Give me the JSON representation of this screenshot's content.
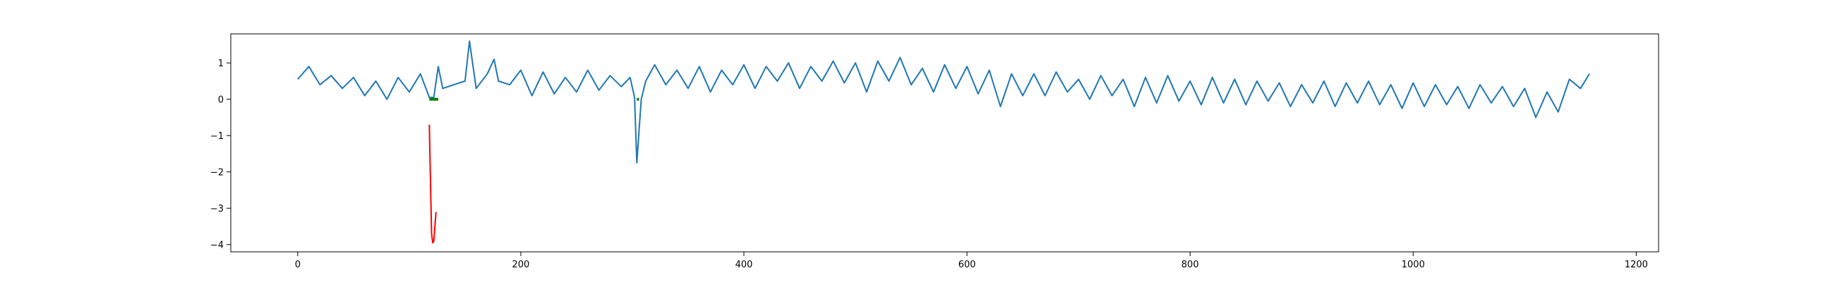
{
  "chart_data": {
    "type": "line",
    "title": "",
    "xlabel": "",
    "ylabel": "",
    "xlim": [
      -60,
      1220
    ],
    "ylim": [
      -4.2,
      1.8
    ],
    "x_ticks": [
      0,
      200,
      400,
      600,
      800,
      1000,
      1200
    ],
    "x_tick_labels": [
      "0",
      "200",
      "400",
      "600",
      "800",
      "1000",
      "1200"
    ],
    "y_ticks": [
      1,
      0,
      -1,
      -2,
      -3,
      -4
    ],
    "y_tick_labels": [
      "1",
      "0",
      "−1",
      "−2",
      "−3",
      "−4"
    ],
    "grid": false,
    "legend": "none",
    "series": [
      {
        "color": "#1f77b4",
        "x": [
          0,
          10,
          20,
          30,
          40,
          50,
          60,
          70,
          80,
          90,
          100,
          110,
          118,
          122,
          126,
          130,
          140,
          150,
          154,
          160,
          170,
          176,
          180,
          190,
          200,
          210,
          220,
          230,
          240,
          250,
          260,
          270,
          280,
          290,
          298,
          302,
          304,
          308,
          312,
          320,
          330,
          340,
          350,
          360,
          370,
          380,
          390,
          400,
          410,
          420,
          430,
          440,
          450,
          460,
          470,
          480,
          490,
          500,
          510,
          520,
          530,
          540,
          550,
          560,
          570,
          580,
          590,
          600,
          610,
          620,
          630,
          640,
          650,
          660,
          670,
          680,
          690,
          700,
          710,
          720,
          730,
          740,
          750,
          760,
          770,
          780,
          790,
          800,
          810,
          820,
          830,
          840,
          850,
          860,
          870,
          880,
          890,
          900,
          910,
          920,
          930,
          940,
          950,
          960,
          970,
          980,
          990,
          1000,
          1010,
          1020,
          1030,
          1040,
          1050,
          1060,
          1070,
          1080,
          1090,
          1100,
          1110,
          1120,
          1130,
          1140,
          1150,
          1158
        ],
        "y": [
          0.55,
          0.9,
          0.4,
          0.65,
          0.3,
          0.6,
          0.1,
          0.5,
          0.0,
          0.6,
          0.2,
          0.7,
          0.05,
          0.05,
          0.9,
          0.3,
          0.4,
          0.5,
          1.6,
          0.3,
          0.7,
          1.1,
          0.5,
          0.4,
          0.8,
          0.1,
          0.75,
          0.15,
          0.6,
          0.2,
          0.8,
          0.25,
          0.65,
          0.35,
          0.6,
          0.05,
          -1.75,
          0.0,
          0.5,
          0.95,
          0.4,
          0.8,
          0.3,
          0.9,
          0.2,
          0.8,
          0.4,
          0.95,
          0.3,
          0.9,
          0.5,
          1.0,
          0.3,
          0.9,
          0.5,
          1.05,
          0.45,
          1.0,
          0.2,
          1.05,
          0.5,
          1.15,
          0.4,
          0.85,
          0.2,
          0.95,
          0.3,
          0.9,
          0.15,
          0.8,
          -0.2,
          0.7,
          0.1,
          0.7,
          0.1,
          0.75,
          0.2,
          0.55,
          0.0,
          0.65,
          0.1,
          0.55,
          -0.2,
          0.6,
          -0.1,
          0.65,
          -0.05,
          0.5,
          -0.15,
          0.6,
          -0.1,
          0.55,
          -0.15,
          0.5,
          -0.05,
          0.45,
          -0.2,
          0.4,
          -0.1,
          0.5,
          -0.2,
          0.45,
          -0.1,
          0.5,
          -0.15,
          0.4,
          -0.25,
          0.45,
          -0.2,
          0.4,
          -0.15,
          0.35,
          -0.25,
          0.4,
          -0.1,
          0.35,
          -0.2,
          0.3,
          -0.5,
          0.2,
          -0.35,
          0.55,
          0.3,
          0.7
        ]
      },
      {
        "color": "#ff0000",
        "x": [
          118,
          120,
          121,
          122,
          124
        ],
        "y": [
          -0.7,
          -3.7,
          -3.95,
          -3.9,
          -3.1
        ]
      }
    ],
    "markers": [
      {
        "color": "#008000",
        "x": [
          118,
          126
        ],
        "y": [
          0.0,
          0.0
        ]
      },
      {
        "color": "#008000",
        "x": [
          304,
          306
        ],
        "y": [
          0.0,
          0.0
        ]
      }
    ]
  }
}
